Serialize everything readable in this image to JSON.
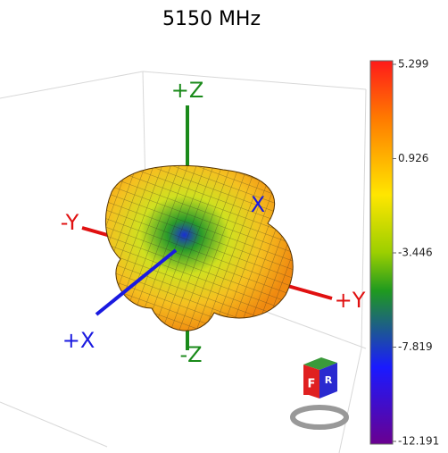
{
  "title": "5150 MHz",
  "axes": {
    "plus_z": "+Z",
    "minus_z": "-Z",
    "minus_y": "-Y",
    "plus_y": "+Y",
    "plus_x": "+X",
    "back_x": "X"
  },
  "colorbar": {
    "lim": [
      -12.191,
      5.299
    ],
    "ticks": [
      5.299,
      0.926,
      -3.446,
      -7.819,
      -12.191
    ]
  },
  "cube": {
    "front": "F",
    "right": "R"
  }
}
